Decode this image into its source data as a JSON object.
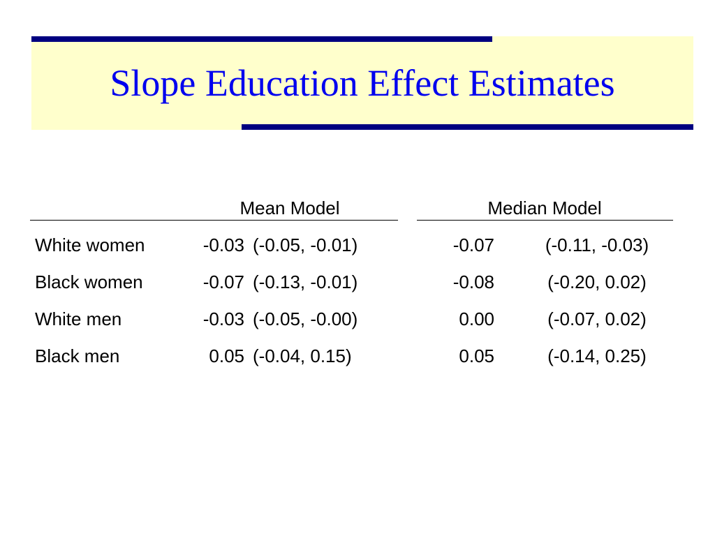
{
  "slide": {
    "title": "Slope Education Effect Estimates",
    "colors": {
      "title_text": "#0000ee",
      "title_background": "#ffffcc",
      "accent_bars": "#000080"
    }
  },
  "table": {
    "headers": {
      "mean_model": "Mean Model",
      "median_model": "Median Model"
    },
    "rows": [
      {
        "label": "White women",
        "mean_est": "-0.03",
        "mean_ci": "(-0.05,  -0.01)",
        "median_est": "-0.07",
        "median_ci": "(-0.11, -0.03)"
      },
      {
        "label": "Black women",
        "mean_est": "-0.07",
        "mean_ci": "(-0.13,  -0.01)",
        "median_est": "-0.08",
        "median_ci": "(-0.20, 0.02)"
      },
      {
        "label": "White men",
        "mean_est": "-0.03",
        "mean_ci": "(-0.05, -0.00)",
        "median_est": "0.00",
        "median_ci": "(-0.07, 0.02)"
      },
      {
        "label": "Black men",
        "mean_est": "0.05",
        "mean_ci": "(-0.04, 0.15)",
        "median_est": "0.05",
        "median_ci": "(-0.14, 0.25)"
      }
    ]
  }
}
